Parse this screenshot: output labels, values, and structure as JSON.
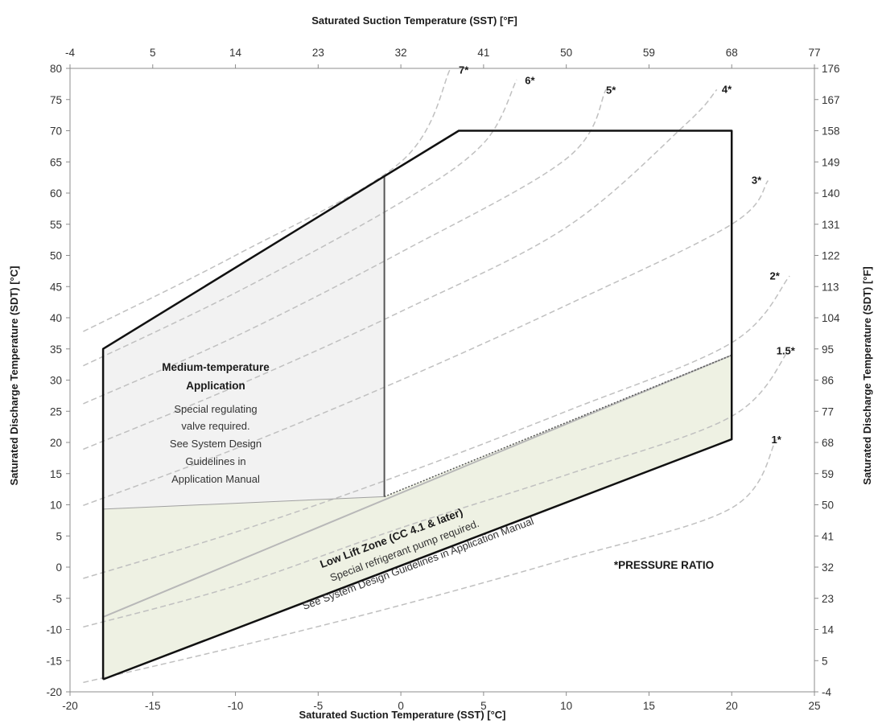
{
  "chart_data": {
    "type": "line",
    "title": "",
    "xlabel_bottom": "Saturated Suction Temperature (SST) [°C]",
    "xlabel_top": "Saturated Suction Temperature (SST) [°F]",
    "ylabel_left": "Saturated Discharge Temperature (SDT) [°C]",
    "ylabel_right": "Saturated Discharge Temperature (SDT) [°F]",
    "xlim": [
      -20,
      25
    ],
    "ylim": [
      -20,
      80
    ],
    "x_ticks": [
      -20,
      -15,
      -10,
      -5,
      0,
      5,
      10,
      15,
      20,
      25
    ],
    "y_ticks": [
      -20,
      -15,
      -10,
      -5,
      0,
      5,
      10,
      15,
      20,
      25,
      30,
      35,
      40,
      45,
      50,
      55,
      60,
      65,
      70,
      75,
      80
    ],
    "x_ticks_top": [
      "-4",
      "5",
      "14",
      "23",
      "32",
      "41",
      "50",
      "59",
      "68",
      "77"
    ],
    "y_ticks_right": [
      "-4",
      "5",
      "14",
      "23",
      "32",
      "41",
      "50",
      "59",
      "68",
      "77",
      "86",
      "95",
      "104",
      "113",
      "122",
      "131",
      "140",
      "149",
      "158",
      "167",
      "176"
    ],
    "grid": false,
    "envelope": [
      [
        -18,
        -18
      ],
      [
        -18,
        35
      ],
      [
        -1,
        62.7
      ],
      [
        3.5,
        70
      ],
      [
        20,
        70
      ],
      [
        20,
        20.5
      ],
      [
        -18,
        -18
      ]
    ],
    "medium_temp_zone": [
      [
        -18,
        9.3
      ],
      [
        -18,
        35
      ],
      [
        -1,
        62.7
      ],
      [
        -1,
        11.3
      ]
    ],
    "low_lift_zone": [
      [
        -18,
        -18
      ],
      [
        -18,
        9.3
      ],
      [
        -1,
        11.3
      ],
      [
        20,
        34
      ],
      [
        20,
        20.5
      ]
    ],
    "low_lift_upper_line": [
      [
        -18,
        -8
      ],
      [
        20,
        34
      ]
    ],
    "divider_line": [
      [
        -1,
        11.3
      ],
      [
        -1,
        62.7
      ]
    ],
    "pressure_ratio_curves": [
      {
        "name": "1*",
        "points": [
          [
            -19.2,
            -18.5
          ],
          [
            -10,
            -12.8
          ],
          [
            0,
            -6.1
          ],
          [
            10,
            1.3
          ],
          [
            20,
            9.5
          ],
          [
            22.7,
            20.5
          ]
        ]
      },
      {
        "name": "1.5*",
        "points": [
          [
            -19.2,
            -9.6
          ],
          [
            -10,
            -3
          ],
          [
            0,
            6.3
          ],
          [
            10,
            14.8
          ],
          [
            20,
            24.2
          ],
          [
            23.5,
            35
          ]
        ]
      },
      {
        "name": "2*",
        "points": [
          [
            -19.2,
            -1.8
          ],
          [
            -10,
            5.6
          ],
          [
            0,
            14.8
          ],
          [
            10,
            25
          ],
          [
            20,
            36
          ],
          [
            23.5,
            46.7
          ]
        ]
      },
      {
        "name": "3*",
        "points": [
          [
            -19.2,
            9.9
          ],
          [
            -10,
            19
          ],
          [
            0,
            30
          ],
          [
            10,
            42
          ],
          [
            20,
            55
          ],
          [
            22.2,
            62
          ]
        ]
      },
      {
        "name": "4*",
        "points": [
          [
            -19.2,
            18.9
          ],
          [
            -10,
            29
          ],
          [
            0,
            41
          ],
          [
            10,
            54.5
          ],
          [
            17.2,
            71
          ],
          [
            19.1,
            76.6
          ]
        ]
      },
      {
        "name": "5*",
        "points": [
          [
            -19.2,
            26.2
          ],
          [
            -10,
            37
          ],
          [
            0,
            50.5
          ],
          [
            10,
            65.5
          ],
          [
            12.4,
            76.6
          ]
        ]
      },
      {
        "name": "6*",
        "points": [
          [
            -19.2,
            32.3
          ],
          [
            -10,
            44
          ],
          [
            0,
            58.5
          ],
          [
            5,
            68
          ],
          [
            7,
            78.2
          ]
        ]
      },
      {
        "name": "7*",
        "points": [
          [
            -19.2,
            37.8
          ],
          [
            -10,
            50
          ],
          [
            0,
            65
          ],
          [
            3,
            80
          ]
        ]
      }
    ],
    "curve_labels": [
      {
        "text": "1*",
        "x": 22.4,
        "y": 20.5
      },
      {
        "text": "1.5*",
        "x": 22.7,
        "y": 34.8
      },
      {
        "text": "2*",
        "x": 22.3,
        "y": 46.8
      },
      {
        "text": "3*",
        "x": 21.2,
        "y": 62.1
      },
      {
        "text": "4*",
        "x": 19.4,
        "y": 76.7
      },
      {
        "text": "5*",
        "x": 12.4,
        "y": 76.6
      },
      {
        "text": "6*",
        "x": 7.5,
        "y": 78.1
      },
      {
        "text": "7*",
        "x": 3.5,
        "y": 79.8
      }
    ],
    "annotations": {
      "medium_title_1": "Medium-temperature",
      "medium_title_2": "Application",
      "medium_line_1": "Special regulating",
      "medium_line_2": "valve required.",
      "medium_line_3": "See System Design",
      "medium_line_4": "Guidelines in",
      "medium_line_5": "Application Manual",
      "low_lift_title": "Low Lift Zone (CC 4.1 & later)",
      "low_lift_line_1": "Special refrigerant pump required.",
      "low_lift_line_2": "See System Design Guidelines in Application Manual",
      "pressure_ratio_note": "*PRESSURE RATIO"
    },
    "colors": {
      "envelope_stroke": "#111111",
      "medium_fill": "#f2f2f2",
      "low_lift_fill": "#eef1e3",
      "pressure_ratio_stroke": "#c0c0c0",
      "axis_stroke": "#8c8c8c"
    }
  }
}
